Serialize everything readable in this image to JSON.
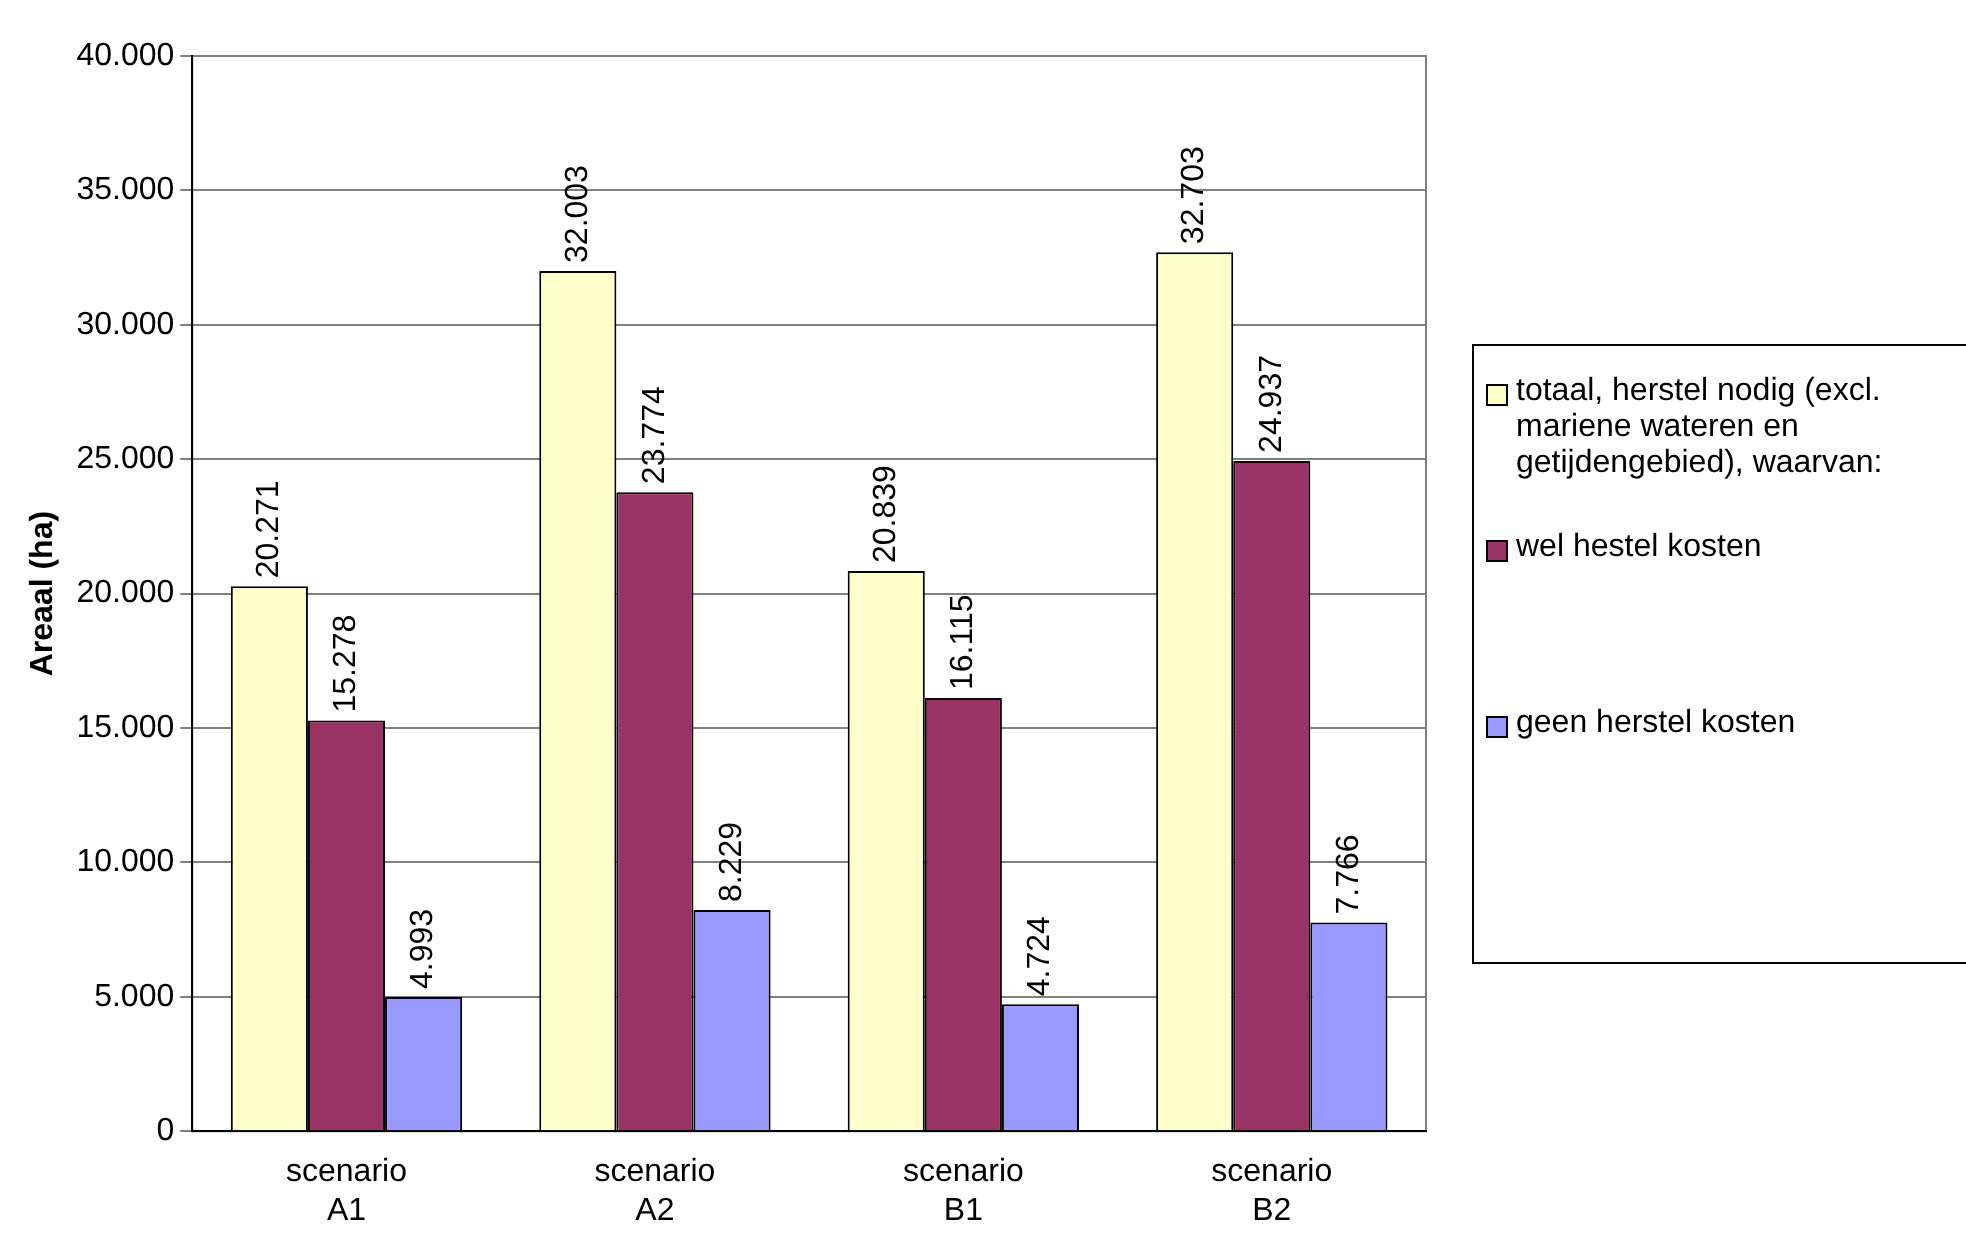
{
  "chart_data": {
    "type": "bar",
    "ylabel": "Areaal (ha)",
    "categories": [
      "scenario A1",
      "scenario A2",
      "scenario B1",
      "scenario B2"
    ],
    "series": [
      {
        "name": "totaal, herstel nodig (excl. mariene wateren en getijdengebied), waarvan:",
        "color": "#ffffcc",
        "values": [
          20271,
          32003,
          20839,
          32703
        ],
        "value_labels": [
          "20.271",
          "32.003",
          "20.839",
          "32.703"
        ]
      },
      {
        "name": "wel hestel kosten",
        "color": "#993366",
        "values": [
          15278,
          23774,
          16115,
          24937
        ],
        "value_labels": [
          "15.278",
          "23.774",
          "16.115",
          "24.937"
        ]
      },
      {
        "name": "geen herstel kosten",
        "color": "#9999ff",
        "values": [
          4993,
          8229,
          4724,
          7766
        ],
        "value_labels": [
          "4.993",
          "8.229",
          "4.724",
          "7.766"
        ]
      }
    ],
    "ylim": [
      0,
      40000
    ],
    "yticks": [
      {
        "value": 0,
        "label": "0"
      },
      {
        "value": 5000,
        "label": "5.000"
      },
      {
        "value": 10000,
        "label": "10.000"
      },
      {
        "value": 15000,
        "label": "15.000"
      },
      {
        "value": 20000,
        "label": "20.000"
      },
      {
        "value": 25000,
        "label": "25.000"
      },
      {
        "value": 30000,
        "label": "30.000"
      },
      {
        "value": 35000,
        "label": "35.000"
      },
      {
        "value": 40000,
        "label": "40.000"
      }
    ],
    "grid": "y",
    "legend": "right"
  }
}
